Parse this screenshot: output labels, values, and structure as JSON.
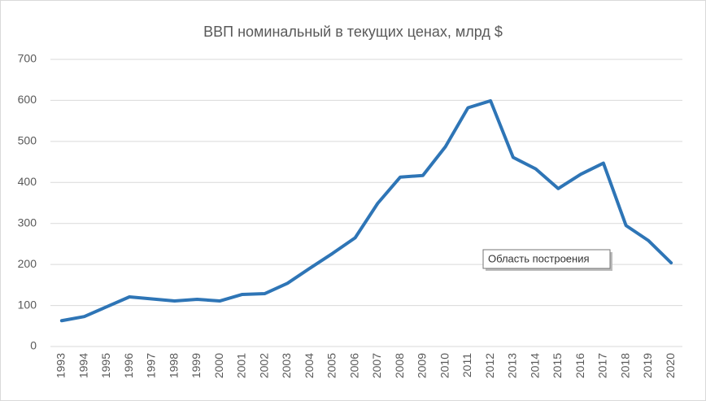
{
  "chart_data": {
    "type": "line",
    "title": "ВВП номинальный в текущих ценах, млрд $",
    "categories": [
      "1993",
      "1994",
      "1995",
      "1996",
      "1997",
      "1998",
      "1999",
      "2000",
      "2001",
      "2002",
      "2003",
      "2004",
      "2005",
      "2006",
      "2007",
      "2008",
      "2009",
      "2010",
      "2011",
      "2012",
      "2013",
      "2014",
      "2015",
      "2016",
      "2017",
      "2018",
      "2019",
      "2020"
    ],
    "series": [
      {
        "color": "#2e75b6",
        "values": [
          63,
          73,
          97,
          121,
          116,
          111,
          115,
          111,
          127,
          129,
          154,
          191,
          227,
          265,
          349,
          413,
          417,
          487,
          582,
          599,
          461,
          433,
          385,
          420,
          447,
          295,
          258,
          204
        ]
      }
    ],
    "ylim": [
      0,
      700
    ],
    "yticks": [
      0,
      100,
      200,
      300,
      400,
      500,
      600,
      700
    ],
    "grid": true,
    "tooltip": "Область построения"
  }
}
